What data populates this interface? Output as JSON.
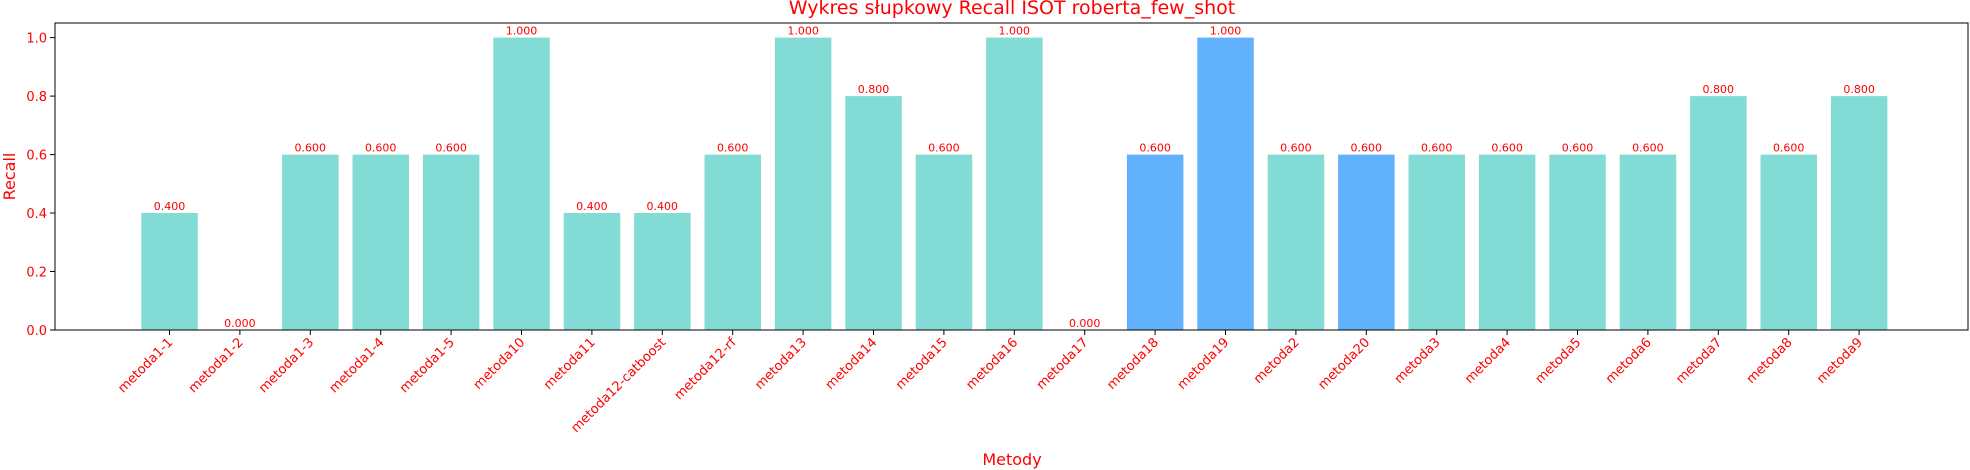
{
  "chart_data": {
    "type": "bar",
    "title": "Wykres słupkowy Recall ISOT roberta_few_shot",
    "xlabel": "Metody",
    "ylabel": "Recall",
    "ylim": [
      0,
      1.05
    ],
    "yticks": [
      0.0,
      0.2,
      0.4,
      0.6,
      0.8,
      1.0
    ],
    "ytick_labels": [
      "0.0",
      "0.2",
      "0.4",
      "0.6",
      "0.8",
      "1.0"
    ],
    "categories": [
      "metoda1-1",
      "metoda1-2",
      "metoda1-3",
      "metoda1-4",
      "metoda1-5",
      "metoda10",
      "metoda11",
      "metoda12-catboost",
      "metoda12-rf",
      "metoda13",
      "metoda14",
      "metoda15",
      "metoda16",
      "metoda17",
      "metoda18",
      "metoda19",
      "metoda2",
      "metoda20",
      "metoda3",
      "metoda4",
      "metoda5",
      "metoda6",
      "metoda7",
      "metoda8",
      "metoda9"
    ],
    "values": [
      0.4,
      0.0,
      0.6,
      0.6,
      0.6,
      1.0,
      0.4,
      0.4,
      0.6,
      1.0,
      0.8,
      0.6,
      1.0,
      0.0,
      0.6,
      1.0,
      0.6,
      0.6,
      0.6,
      0.6,
      0.6,
      0.6,
      0.8,
      0.6,
      0.8
    ],
    "value_labels": [
      "0.400",
      "0.000",
      "0.600",
      "0.600",
      "0.600",
      "1.000",
      "0.400",
      "0.400",
      "0.600",
      "1.000",
      "0.800",
      "0.600",
      "1.000",
      "0.000",
      "0.600",
      "1.000",
      "0.600",
      "0.600",
      "0.600",
      "0.600",
      "0.600",
      "0.600",
      "0.800",
      "0.600",
      "0.800"
    ],
    "highlighted": [
      "metoda18",
      "metoda19",
      "metoda20"
    ],
    "grid": false,
    "colors": {
      "bar": "#83dbd6",
      "bar_highlight": "#61b1fc",
      "text": "#ff0000",
      "axis": "#000000"
    }
  }
}
